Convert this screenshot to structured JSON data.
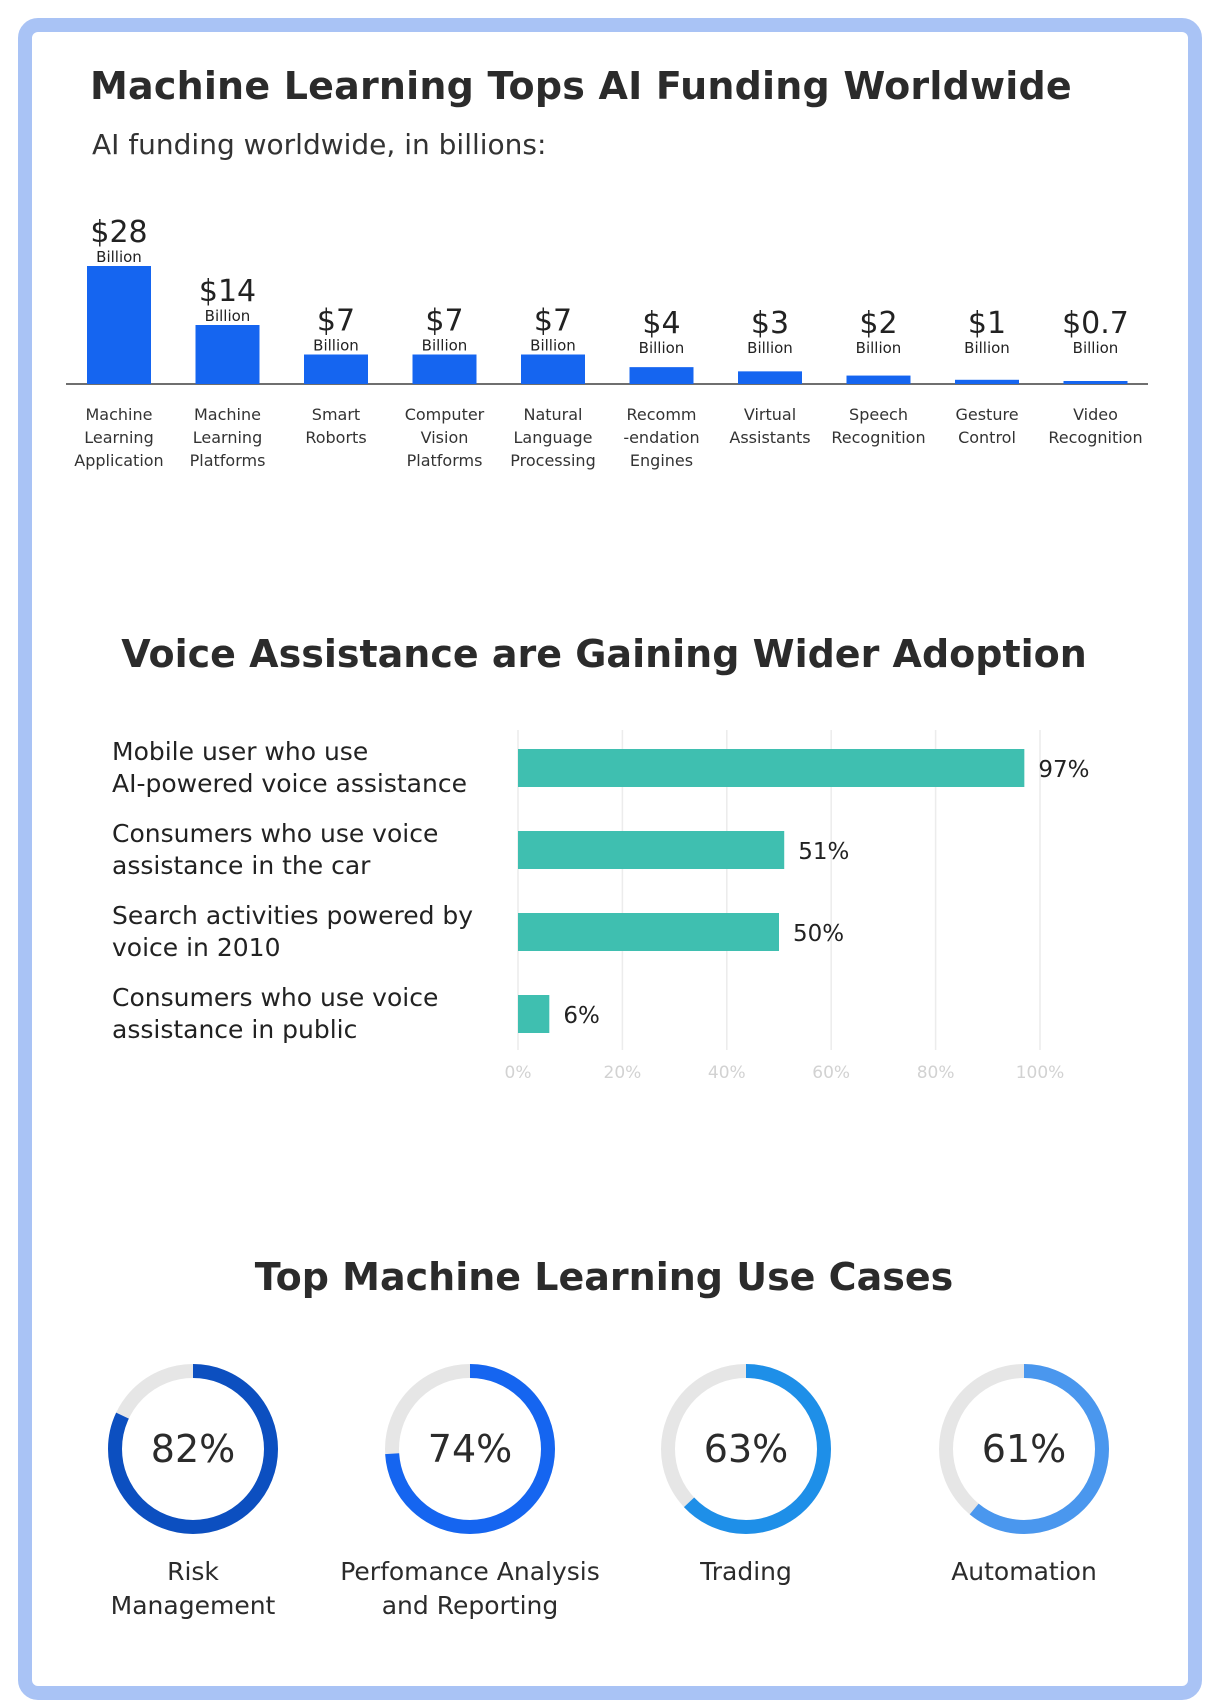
{
  "charts": {
    "funding": {
      "title": "Machine Learning Tops AI Funding Worldwide",
      "subtitle": "AI funding worldwide, in billions:"
    },
    "voice": {
      "title": "Voice Assistance are Gaining Wider Adoption"
    },
    "use_cases": {
      "title": "Top Machine Learning Use Cases"
    }
  },
  "chart_data": [
    {
      "type": "bar",
      "title": "Machine Learning Tops AI Funding Worldwide",
      "subtitle": "AI funding worldwide, in billions:",
      "categories": [
        [
          "Machine",
          "Learning",
          "Application"
        ],
        [
          "Machine",
          "Learning",
          "Platforms"
        ],
        [
          "Smart",
          "Roborts"
        ],
        [
          "Computer",
          "Vision",
          "Platforms"
        ],
        [
          "Natural",
          "Language",
          "Processing"
        ],
        [
          "Recomm",
          "-endation",
          "Engines"
        ],
        [
          "Virtual",
          "Assistants"
        ],
        [
          "Speech",
          "Recognition"
        ],
        [
          "Gesture",
          "Control"
        ],
        [
          "Video",
          "Recognition"
        ]
      ],
      "values": [
        28,
        14,
        7,
        7,
        7,
        4,
        3,
        2,
        1,
        0.7
      ],
      "value_labels": [
        "$28",
        "$14",
        "$7",
        "$7",
        "$7",
        "$4",
        "$3",
        "$2",
        "$1",
        "$0.7"
      ],
      "unit_label": "Billion",
      "ylim": [
        0,
        28
      ],
      "color": "#1565f0"
    },
    {
      "type": "bar",
      "orientation": "horizontal",
      "title": "Voice Assistance are Gaining Wider Adoption",
      "categories": [
        [
          "Mobile user who use",
          "AI-powered voice assistance"
        ],
        [
          "Consumers who use voice",
          "assistance in the car"
        ],
        [
          "Search activities powered by",
          "voice in 2010"
        ],
        [
          "Consumers who use voice",
          "assistance in public"
        ]
      ],
      "values": [
        97,
        51,
        50,
        6
      ],
      "value_labels": [
        "97%",
        "51%",
        "50%",
        "6%"
      ],
      "xlim": [
        0,
        100
      ],
      "xticks": [
        "0%",
        "20%",
        "40%",
        "60%",
        "80%",
        "100%"
      ],
      "grid": true,
      "color": "#3fbfb0"
    },
    {
      "type": "donut",
      "title": "Top Machine Learning Use Cases",
      "items": [
        {
          "label": "Risk\nManagement",
          "value": 82,
          "value_label": "82%",
          "color": "#0c4fc0"
        },
        {
          "label": "Perfomance Analysis\nand Reporting",
          "value": 74,
          "value_label": "74%",
          "color": "#1565f0"
        },
        {
          "label": "Trading",
          "value": 63,
          "value_label": "63%",
          "color": "#1e8fe8"
        },
        {
          "label": "Automation",
          "value": 61,
          "value_label": "61%",
          "color": "#4a97ee"
        }
      ],
      "track_color": "#e6e6e6"
    }
  ]
}
